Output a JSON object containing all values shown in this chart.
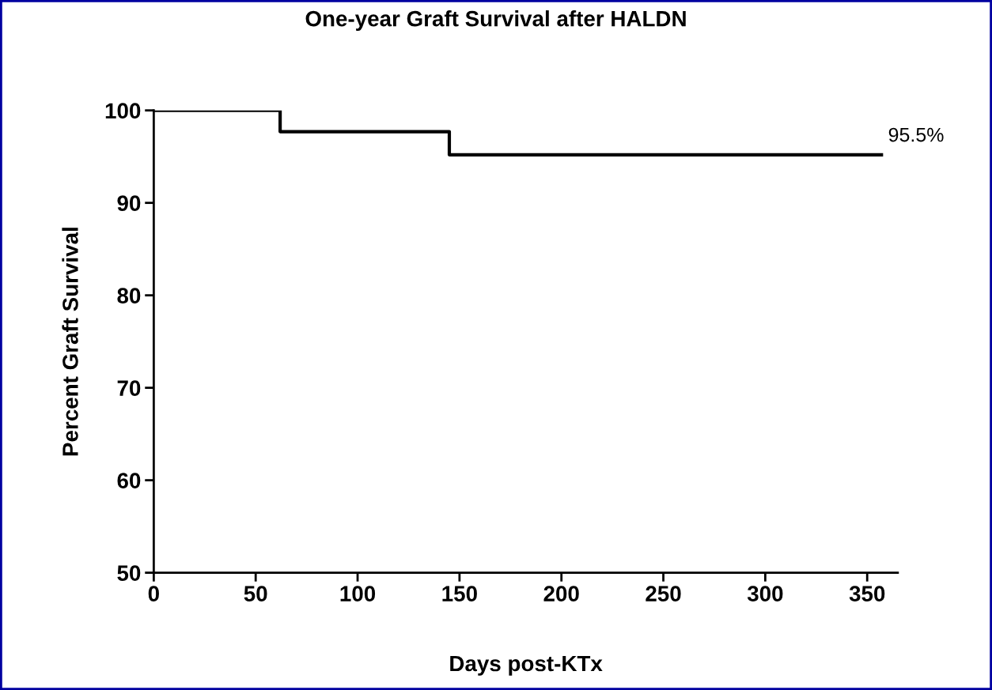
{
  "chart_data": {
    "type": "step",
    "title": "One-year Graft Survival after HALDN",
    "xlabel": "Days post-KTx",
    "ylabel": "Percent Graft Survival",
    "x": [
      0,
      62,
      145,
      357
    ],
    "series": [
      {
        "color": "#000000",
        "values": [
          100,
          97.7,
          95.2,
          95.2
        ]
      }
    ],
    "xlim": [
      0,
      365
    ],
    "ylim": [
      50,
      100
    ],
    "xticks": [
      0,
      50,
      100,
      150,
      200,
      250,
      300,
      350
    ],
    "yticks": [
      50,
      60,
      70,
      80,
      90,
      100
    ],
    "annotations": [
      {
        "text": "95.5%",
        "x": 357,
        "y": 95.2
      }
    ],
    "grid": false,
    "legend": false,
    "marker": "none",
    "line_style": "solid"
  }
}
